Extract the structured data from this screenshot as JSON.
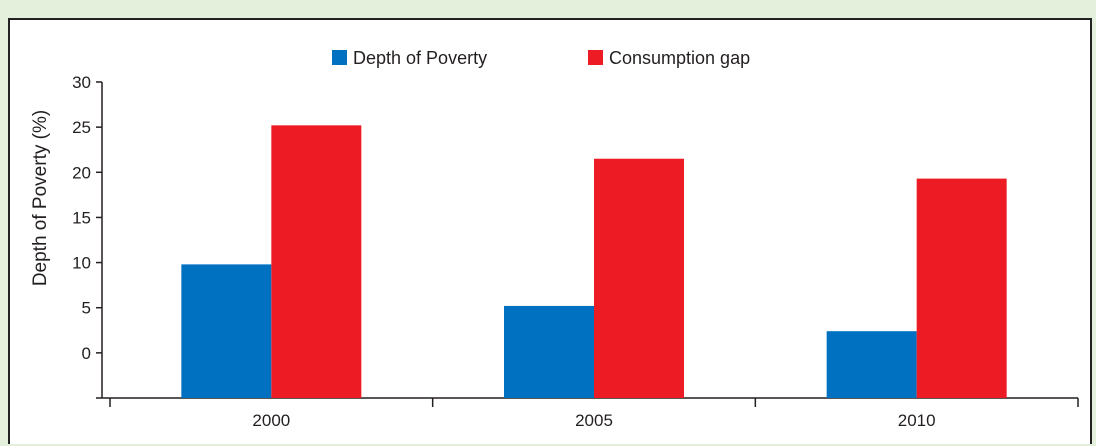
{
  "chart_data": {
    "type": "bar",
    "categories": [
      "2000",
      "2005",
      "2010"
    ],
    "series": [
      {
        "name": "Depth of Poverty",
        "values": [
          9.8,
          5.2,
          2.4
        ],
        "color": "#0070c0"
      },
      {
        "name": "Consumption gap",
        "values": [
          25.2,
          21.5,
          19.3
        ],
        "color": "#ed1c24"
      }
    ],
    "title": "",
    "xlabel": "",
    "ylabel": "Depth of Poverty (%)",
    "ylim": [
      -5,
      30
    ],
    "yticks": [
      0,
      5,
      10,
      15,
      20,
      25,
      30
    ],
    "grid": false,
    "legend_position": "top-center"
  }
}
